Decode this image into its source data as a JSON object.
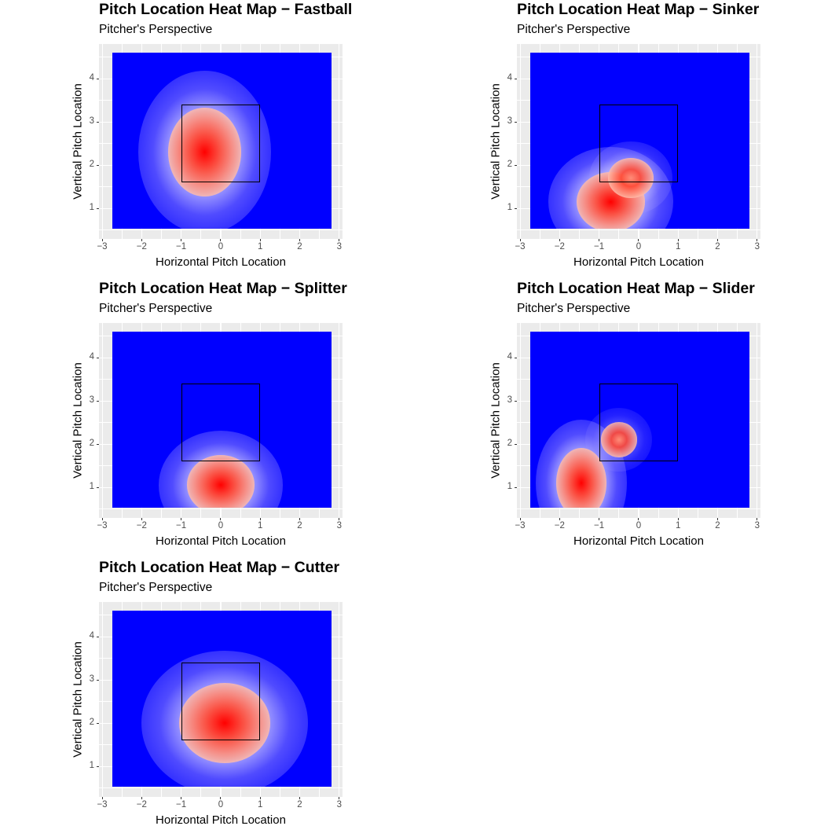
{
  "chart_data": [
    {
      "type": "heatmap",
      "title": "Pitch Location Heat Map − Fastball",
      "subtitle": "Pitcher's Perspective",
      "xlabel": "Horizontal Pitch Location",
      "ylabel": "Vertical Pitch Location",
      "xlim": [
        -3,
        3
      ],
      "ylim": [
        0.3,
        4.8
      ],
      "x_ticks": [
        "−3",
        "−2",
        "−1",
        "0",
        "1",
        "2",
        "3"
      ],
      "y_ticks": [
        "1",
        "2",
        "3",
        "4"
      ],
      "strike_zone": {
        "x": [
          -1,
          1
        ],
        "y": [
          1.6,
          3.4
        ]
      },
      "color_scale": {
        "low": "#0000ff",
        "mid": "#ffffff",
        "high": "#ff0000"
      },
      "density_peaks": [
        {
          "x": -0.4,
          "y": 2.3,
          "sx": 0.8,
          "sy": 0.9,
          "weight": 1.0
        }
      ]
    },
    {
      "type": "heatmap",
      "title": "Pitch Location Heat Map − Sinker",
      "subtitle": "Pitcher's Perspective",
      "xlabel": "Horizontal Pitch Location",
      "ylabel": "Vertical Pitch Location",
      "xlim": [
        -3,
        3
      ],
      "ylim": [
        0.3,
        4.8
      ],
      "x_ticks": [
        "−3",
        "−2",
        "−1",
        "0",
        "1",
        "2",
        "3"
      ],
      "y_ticks": [
        "1",
        "2",
        "3",
        "4"
      ],
      "strike_zone": {
        "x": [
          -1,
          1
        ],
        "y": [
          1.6,
          3.4
        ]
      },
      "color_scale": {
        "low": "#0000ff",
        "mid": "#ffffff",
        "high": "#ff0000"
      },
      "density_peaks": [
        {
          "x": -0.7,
          "y": 1.15,
          "sx": 0.75,
          "sy": 0.6,
          "weight": 1.0
        },
        {
          "x": -0.2,
          "y": 1.7,
          "sx": 0.5,
          "sy": 0.4,
          "weight": 0.6
        }
      ]
    },
    {
      "type": "heatmap",
      "title": "Pitch Location Heat Map − Splitter",
      "subtitle": "Pitcher's Perspective",
      "xlabel": "Horizontal Pitch Location",
      "ylabel": "Vertical Pitch Location",
      "xlim": [
        -3,
        3
      ],
      "ylim": [
        0.3,
        4.8
      ],
      "x_ticks": [
        "−3",
        "−2",
        "−1",
        "0",
        "1",
        "2",
        "3"
      ],
      "y_ticks": [
        "1",
        "2",
        "3",
        "4"
      ],
      "strike_zone": {
        "x": [
          -1,
          1
        ],
        "y": [
          1.6,
          3.4
        ]
      },
      "color_scale": {
        "low": "#0000ff",
        "mid": "#ffffff",
        "high": "#ff0000"
      },
      "density_peaks": [
        {
          "x": 0.0,
          "y": 1.05,
          "sx": 0.75,
          "sy": 0.6,
          "weight": 1.0
        }
      ]
    },
    {
      "type": "heatmap",
      "title": "Pitch Location Heat Map − Slider",
      "subtitle": "Pitcher's Perspective",
      "xlabel": "Horizontal Pitch Location",
      "ylabel": "Vertical Pitch Location",
      "xlim": [
        -3,
        3
      ],
      "ylim": [
        0.3,
        4.8
      ],
      "x_ticks": [
        "−3",
        "−2",
        "−1",
        "0",
        "1",
        "2",
        "3"
      ],
      "y_ticks": [
        "1",
        "2",
        "3",
        "4"
      ],
      "strike_zone": {
        "x": [
          -1,
          1
        ],
        "y": [
          1.6,
          3.4
        ]
      },
      "color_scale": {
        "low": "#0000ff",
        "mid": "#ffffff",
        "high": "#ff0000"
      },
      "density_peaks": [
        {
          "x": -1.45,
          "y": 1.1,
          "sx": 0.55,
          "sy": 0.7,
          "weight": 1.0
        },
        {
          "x": -0.5,
          "y": 2.1,
          "sx": 0.4,
          "sy": 0.35,
          "weight": 0.45
        }
      ]
    },
    {
      "type": "heatmap",
      "title": "Pitch Location Heat Map − Cutter",
      "subtitle": "Pitcher's Perspective",
      "xlabel": "Horizontal Pitch Location",
      "ylabel": "Vertical Pitch Location",
      "xlim": [
        -3,
        3
      ],
      "ylim": [
        0.3,
        4.8
      ],
      "x_ticks": [
        "−3",
        "−2",
        "−1",
        "0",
        "1",
        "2",
        "3"
      ],
      "y_ticks": [
        "1",
        "2",
        "3",
        "4"
      ],
      "strike_zone": {
        "x": [
          -1,
          1
        ],
        "y": [
          1.6,
          3.4
        ]
      },
      "color_scale": {
        "low": "#0000ff",
        "mid": "#ffffff",
        "high": "#ff0000"
      },
      "density_peaks": [
        {
          "x": 0.1,
          "y": 2.0,
          "sx": 1.0,
          "sy": 0.8,
          "weight": 1.0
        }
      ]
    }
  ],
  "plots": [
    {
      "title": "Pitch Location Heat Map − Fastball",
      "subtitle": "Pitcher's Perspective",
      "xlabel": "Horizontal Pitch Location",
      "ylabel": "Vertical Pitch Location"
    },
    {
      "title": "Pitch Location Heat Map − Sinker",
      "subtitle": "Pitcher's Perspective",
      "xlabel": "Horizontal Pitch Location",
      "ylabel": "Vertical Pitch Location"
    },
    {
      "title": "Pitch Location Heat Map − Splitter",
      "subtitle": "Pitcher's Perspective",
      "xlabel": "Horizontal Pitch Location",
      "ylabel": "Vertical Pitch Location"
    },
    {
      "title": "Pitch Location Heat Map − Slider",
      "subtitle": "Pitcher's Perspective",
      "xlabel": "Horizontal Pitch Location",
      "ylabel": "Vertical Pitch Location"
    },
    {
      "title": "Pitch Location Heat Map − Cutter",
      "subtitle": "Pitcher's Perspective",
      "xlabel": "Horizontal Pitch Location",
      "ylabel": "Vertical Pitch Location"
    }
  ],
  "axis": {
    "x_ticks": [
      "−3",
      "−2",
      "−1",
      "0",
      "1",
      "2",
      "3"
    ],
    "y_ticks": [
      "1",
      "2",
      "3",
      "4"
    ]
  }
}
